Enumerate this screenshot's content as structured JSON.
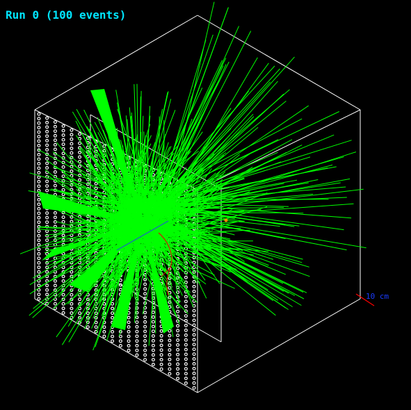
{
  "viewer": {
    "title": "Run 0 (100 events)",
    "scale_label": "10 cm"
  },
  "colors": {
    "background": "#000000",
    "title": "#00e5ff",
    "frame": "#ffffff",
    "gamma_tracks": "#00ff00",
    "charged_track": "#cc2200",
    "primary_beam": "#2233ff",
    "hit_marker": "#ff8800",
    "scale_bar": "#ff0000",
    "scale_label": "#1a3cff"
  },
  "icons": {
    "hit_marker": "dot-icon"
  }
}
